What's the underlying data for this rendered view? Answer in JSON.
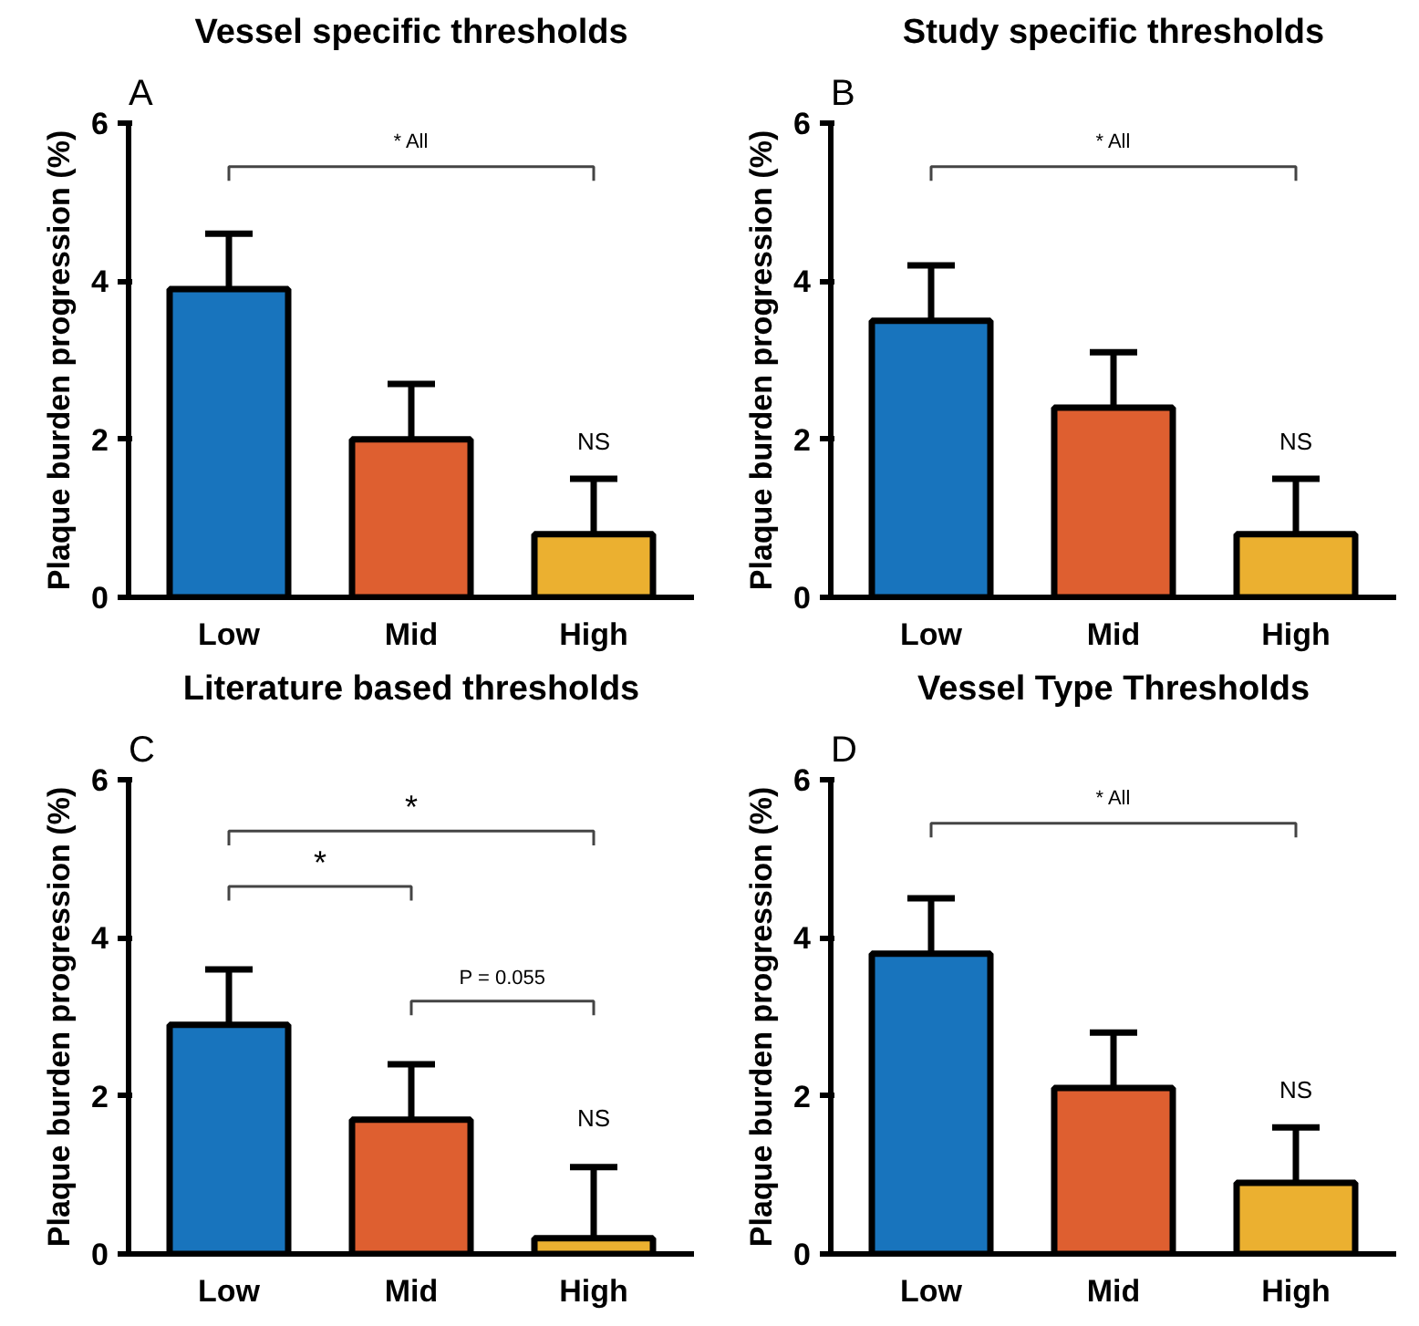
{
  "chart_data": [
    {
      "type": "bar",
      "title": "Vessel specific thresholds",
      "ylabel": "Plaque burden progression (%)",
      "categories": [
        "Low",
        "Mid",
        "High"
      ],
      "values": [
        3.9,
        2.0,
        0.8
      ],
      "colors": [
        "#1874bd",
        "#de5f30",
        "#ebb030"
      ],
      "errors": [
        [
          3.9,
          4.6
        ],
        [
          2.0,
          2.7
        ],
        [
          0.8,
          1.5
        ]
      ],
      "ylim": [
        0,
        6
      ],
      "yticks": [
        0,
        2,
        4,
        6
      ],
      "annotations": [
        "A",
        "* All",
        "NS"
      ]
    },
    {
      "type": "bar",
      "title": "Study specific thresholds",
      "ylabel": "Plaque burden progression (%)",
      "categories": [
        "Low",
        "Mid",
        "High"
      ],
      "values": [
        3.5,
        2.4,
        0.8
      ],
      "colors": [
        "#1874bd",
        "#de5f30",
        "#ebb030"
      ],
      "errors": [
        [
          3.5,
          4.2
        ],
        [
          2.4,
          3.1
        ],
        [
          0.8,
          1.5
        ]
      ],
      "ylim": [
        0,
        6
      ],
      "yticks": [
        0,
        2,
        4,
        6
      ],
      "annotations": [
        "B",
        "* All",
        "NS"
      ]
    },
    {
      "type": "bar",
      "title": "Literature based thresholds",
      "ylabel": "Plaque burden progression (%)",
      "categories": [
        "Low",
        "Mid",
        "High"
      ],
      "values": [
        2.9,
        1.7,
        0.2
      ],
      "colors": [
        "#1874bd",
        "#de5f30",
        "#ebb030"
      ],
      "errors": [
        [
          2.9,
          3.6
        ],
        [
          1.7,
          2.4
        ],
        [
          0.2,
          1.1
        ]
      ],
      "ylim": [
        0,
        6
      ],
      "yticks": [
        0,
        2,
        4,
        6
      ],
      "annotations": [
        "C",
        "*",
        "*",
        "P = 0.055",
        "NS"
      ]
    },
    {
      "type": "bar",
      "title": "Vessel Type Thresholds",
      "ylabel": "Plaque burden progression (%)",
      "categories": [
        "Low",
        "Mid",
        "High"
      ],
      "values": [
        3.8,
        2.1,
        0.9
      ],
      "colors": [
        "#1874bd",
        "#de5f30",
        "#ebb030"
      ],
      "errors": [
        [
          3.8,
          4.5
        ],
        [
          2.1,
          2.8
        ],
        [
          0.9,
          1.6
        ]
      ],
      "ylim": [
        0,
        6
      ],
      "yticks": [
        0,
        2,
        4,
        6
      ],
      "annotations": [
        "D",
        "* All",
        "NS"
      ]
    }
  ]
}
